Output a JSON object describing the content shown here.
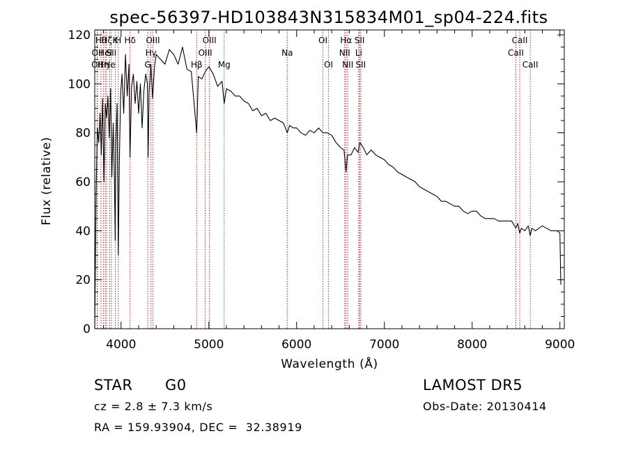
{
  "chart_data": {
    "type": "line",
    "title": "spec-56397-HD103843N315834M01_sp04-224.fits",
    "xlabel": "Wavelength (Å)",
    "ylabel": "Flux (relative)",
    "xlim": [
      3700,
      9050
    ],
    "ylim": [
      0,
      122
    ],
    "xticks": [
      4000,
      5000,
      6000,
      7000,
      8000,
      9000
    ],
    "yticks": [
      0,
      20,
      40,
      60,
      80,
      100,
      120
    ],
    "grid": false,
    "line_color": "#000000",
    "marker_color": "#b22222",
    "series": [
      {
        "x": [
          3700,
          3715,
          3730,
          3745,
          3760,
          3775,
          3790,
          3805,
          3820,
          3835,
          3850,
          3865,
          3880,
          3895,
          3910,
          3925,
          3933,
          3940,
          3955,
          3968,
          3980,
          3995,
          4010,
          4030,
          4050,
          4070,
          4090,
          4102,
          4120,
          4140,
          4160,
          4180,
          4200,
          4220,
          4240,
          4260,
          4280,
          4300,
          4308,
          4320,
          4340,
          4360,
          4380,
          4400,
          4450,
          4500,
          4550,
          4600,
          4650,
          4700,
          4750,
          4800,
          4861,
          4880,
          4920,
          4960,
          5000,
          5050,
          5100,
          5150,
          5175,
          5200,
          5250,
          5300,
          5350,
          5400,
          5450,
          5500,
          5550,
          5600,
          5650,
          5700,
          5750,
          5800,
          5850,
          5893,
          5920,
          5960,
          6000,
          6050,
          6100,
          6150,
          6200,
          6250,
          6300,
          6350,
          6400,
          6450,
          6500,
          6540,
          6563,
          6580,
          6620,
          6660,
          6700,
          6720,
          6760,
          6800,
          6850,
          6900,
          6950,
          7000,
          7050,
          7100,
          7150,
          7200,
          7250,
          7300,
          7350,
          7400,
          7450,
          7500,
          7550,
          7600,
          7650,
          7700,
          7750,
          7800,
          7850,
          7900,
          7950,
          8000,
          8050,
          8100,
          8150,
          8200,
          8250,
          8300,
          8350,
          8400,
          8450,
          8498,
          8520,
          8542,
          8560,
          8600,
          8640,
          8662,
          8680,
          8720,
          8760,
          8800,
          8850,
          8900,
          8940,
          8970,
          9000,
          9010
        ],
        "y": [
          0,
          55,
          82,
          76,
          88,
          71,
          94,
          60,
          92,
          86,
          95,
          78,
          98,
          62,
          84,
          60,
          36,
          75,
          92,
          30,
          68,
          96,
          104,
          88,
          112,
          95,
          108,
          70,
          99,
          104,
          92,
          101,
          88,
          100,
          82,
          97,
          104,
          100,
          70,
          97,
          108,
          94,
          107,
          112,
          110,
          108,
          114,
          112,
          108,
          115,
          106,
          105,
          80,
          103,
          102,
          105,
          107,
          104,
          99,
          101,
          92,
          98,
          97,
          95,
          95,
          93,
          92,
          89,
          90,
          87,
          88,
          85,
          86,
          85,
          84,
          80,
          83,
          82,
          82,
          80,
          79,
          81,
          80,
          82,
          80,
          80,
          79,
          76,
          74,
          73,
          64,
          71,
          71,
          74,
          72,
          76,
          74,
          71,
          73,
          71,
          70,
          69,
          67,
          66,
          64,
          63,
          62,
          61,
          60,
          58,
          57,
          56,
          55,
          54,
          52,
          52,
          51,
          50,
          50,
          48,
          47,
          48,
          48,
          46,
          45,
          45,
          45,
          44,
          44,
          44,
          44,
          41,
          43,
          39,
          41,
          40,
          42,
          38,
          41,
          40,
          41,
          42,
          41,
          40,
          40,
          40,
          39,
          18
        ]
      }
    ],
    "line_markers": [
      {
        "x": 3727,
        "row": 2,
        "label": "OII"
      },
      {
        "x": 3730,
        "row": 1,
        "label": "OII"
      },
      {
        "x": 3771,
        "row": 0,
        "label": "Hθ"
      },
      {
        "x": 3798,
        "row": 2,
        "label": "Hη"
      },
      {
        "x": 3820,
        "row": 1,
        "label": "HeI"
      },
      {
        "x": 3835,
        "row": 0,
        "label": "Hζ"
      },
      {
        "x": 3870,
        "row": 2,
        "label": "He"
      },
      {
        "x": 3889,
        "row": 1,
        "label": "SII"
      },
      {
        "x": 3934,
        "row": 0,
        "label": "K"
      },
      {
        "x": 3968,
        "row": 0,
        "label": "H"
      },
      {
        "x": 4102,
        "row": 0,
        "label": "Hδ"
      },
      {
        "x": 4304,
        "row": 2,
        "label": "G"
      },
      {
        "x": 4340,
        "row": 1,
        "label": "Hγ"
      },
      {
        "x": 4363,
        "row": 0,
        "label": "OIII"
      },
      {
        "x": 4861,
        "row": 2,
        "label": "Hβ"
      },
      {
        "x": 4959,
        "row": 1,
        "label": "OIII"
      },
      {
        "x": 5007,
        "row": 0,
        "label": "OIII"
      },
      {
        "x": 5175,
        "row": 2,
        "label": "Mg"
      },
      {
        "x": 5893,
        "row": 1,
        "label": "Na"
      },
      {
        "x": 6300,
        "row": 0,
        "label": "OI"
      },
      {
        "x": 6364,
        "row": 2,
        "label": "OI"
      },
      {
        "x": 6548,
        "row": 1,
        "label": "NII"
      },
      {
        "x": 6563,
        "row": 0,
        "label": "Hα"
      },
      {
        "x": 6583,
        "row": 2,
        "label": "NII"
      },
      {
        "x": 6708,
        "row": 1,
        "label": "Li"
      },
      {
        "x": 6717,
        "row": 0,
        "label": "SII"
      },
      {
        "x": 6731,
        "row": 2,
        "label": "SII"
      },
      {
        "x": 8498,
        "row": 1,
        "label": "CaII"
      },
      {
        "x": 8542,
        "row": 0,
        "label": "CaII"
      },
      {
        "x": 8662,
        "row": 2,
        "label": "CaII"
      }
    ]
  },
  "info": {
    "object_class": "STAR",
    "subclass": "G0",
    "survey": "LAMOST DR5",
    "redshift_line": "cz = 2.8 ± 7.3 km/s",
    "obs_date": "Obs-Date: 20130414",
    "coords": "RA = 159.93904, DEC =  32.38919"
  }
}
